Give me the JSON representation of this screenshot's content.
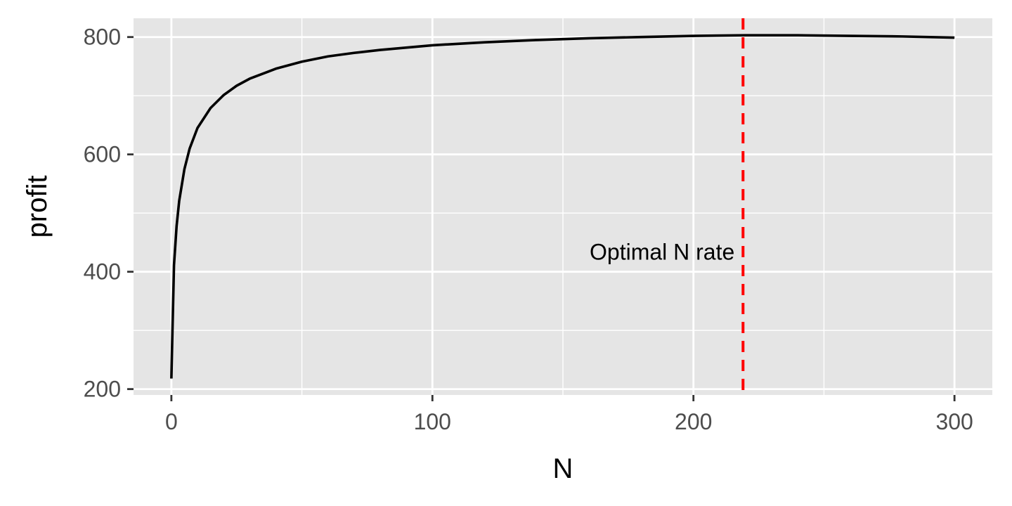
{
  "chart_data": {
    "type": "line",
    "title": "",
    "xlabel": "N",
    "ylabel": "profit",
    "xlim": [
      -14.5,
      314.5
    ],
    "ylim": [
      190,
      832
    ],
    "x_ticks": [
      0,
      100,
      200,
      300
    ],
    "x_minor": [
      50,
      150,
      250
    ],
    "y_ticks": [
      200,
      400,
      600,
      800
    ],
    "y_minor": [
      300,
      500,
      700
    ],
    "grid": true,
    "legend": "none",
    "colors": {
      "panel": "#e5e5e5",
      "grid": "#ffffff",
      "line": "#000000",
      "optimal": "#ff0000"
    },
    "series": [
      {
        "x": [
          0,
          1,
          2,
          3,
          5,
          7,
          10,
          15,
          20,
          25,
          30,
          40,
          50,
          60,
          70,
          80,
          100,
          120,
          140,
          160,
          180,
          200,
          220,
          240,
          260,
          280,
          300
        ],
        "y": [
          218,
          411,
          478,
          521,
          575,
          610,
          645,
          679,
          701,
          717,
          729,
          746,
          758,
          767,
          773,
          778,
          786,
          791,
          795,
          798,
          800,
          802,
          803,
          803,
          802,
          801,
          799
        ]
      }
    ],
    "annotations": [
      {
        "type": "vline",
        "x": 219,
        "style": "dashed"
      },
      {
        "type": "text",
        "x": 219,
        "y": 435,
        "text": "Optimal N rate"
      }
    ]
  }
}
